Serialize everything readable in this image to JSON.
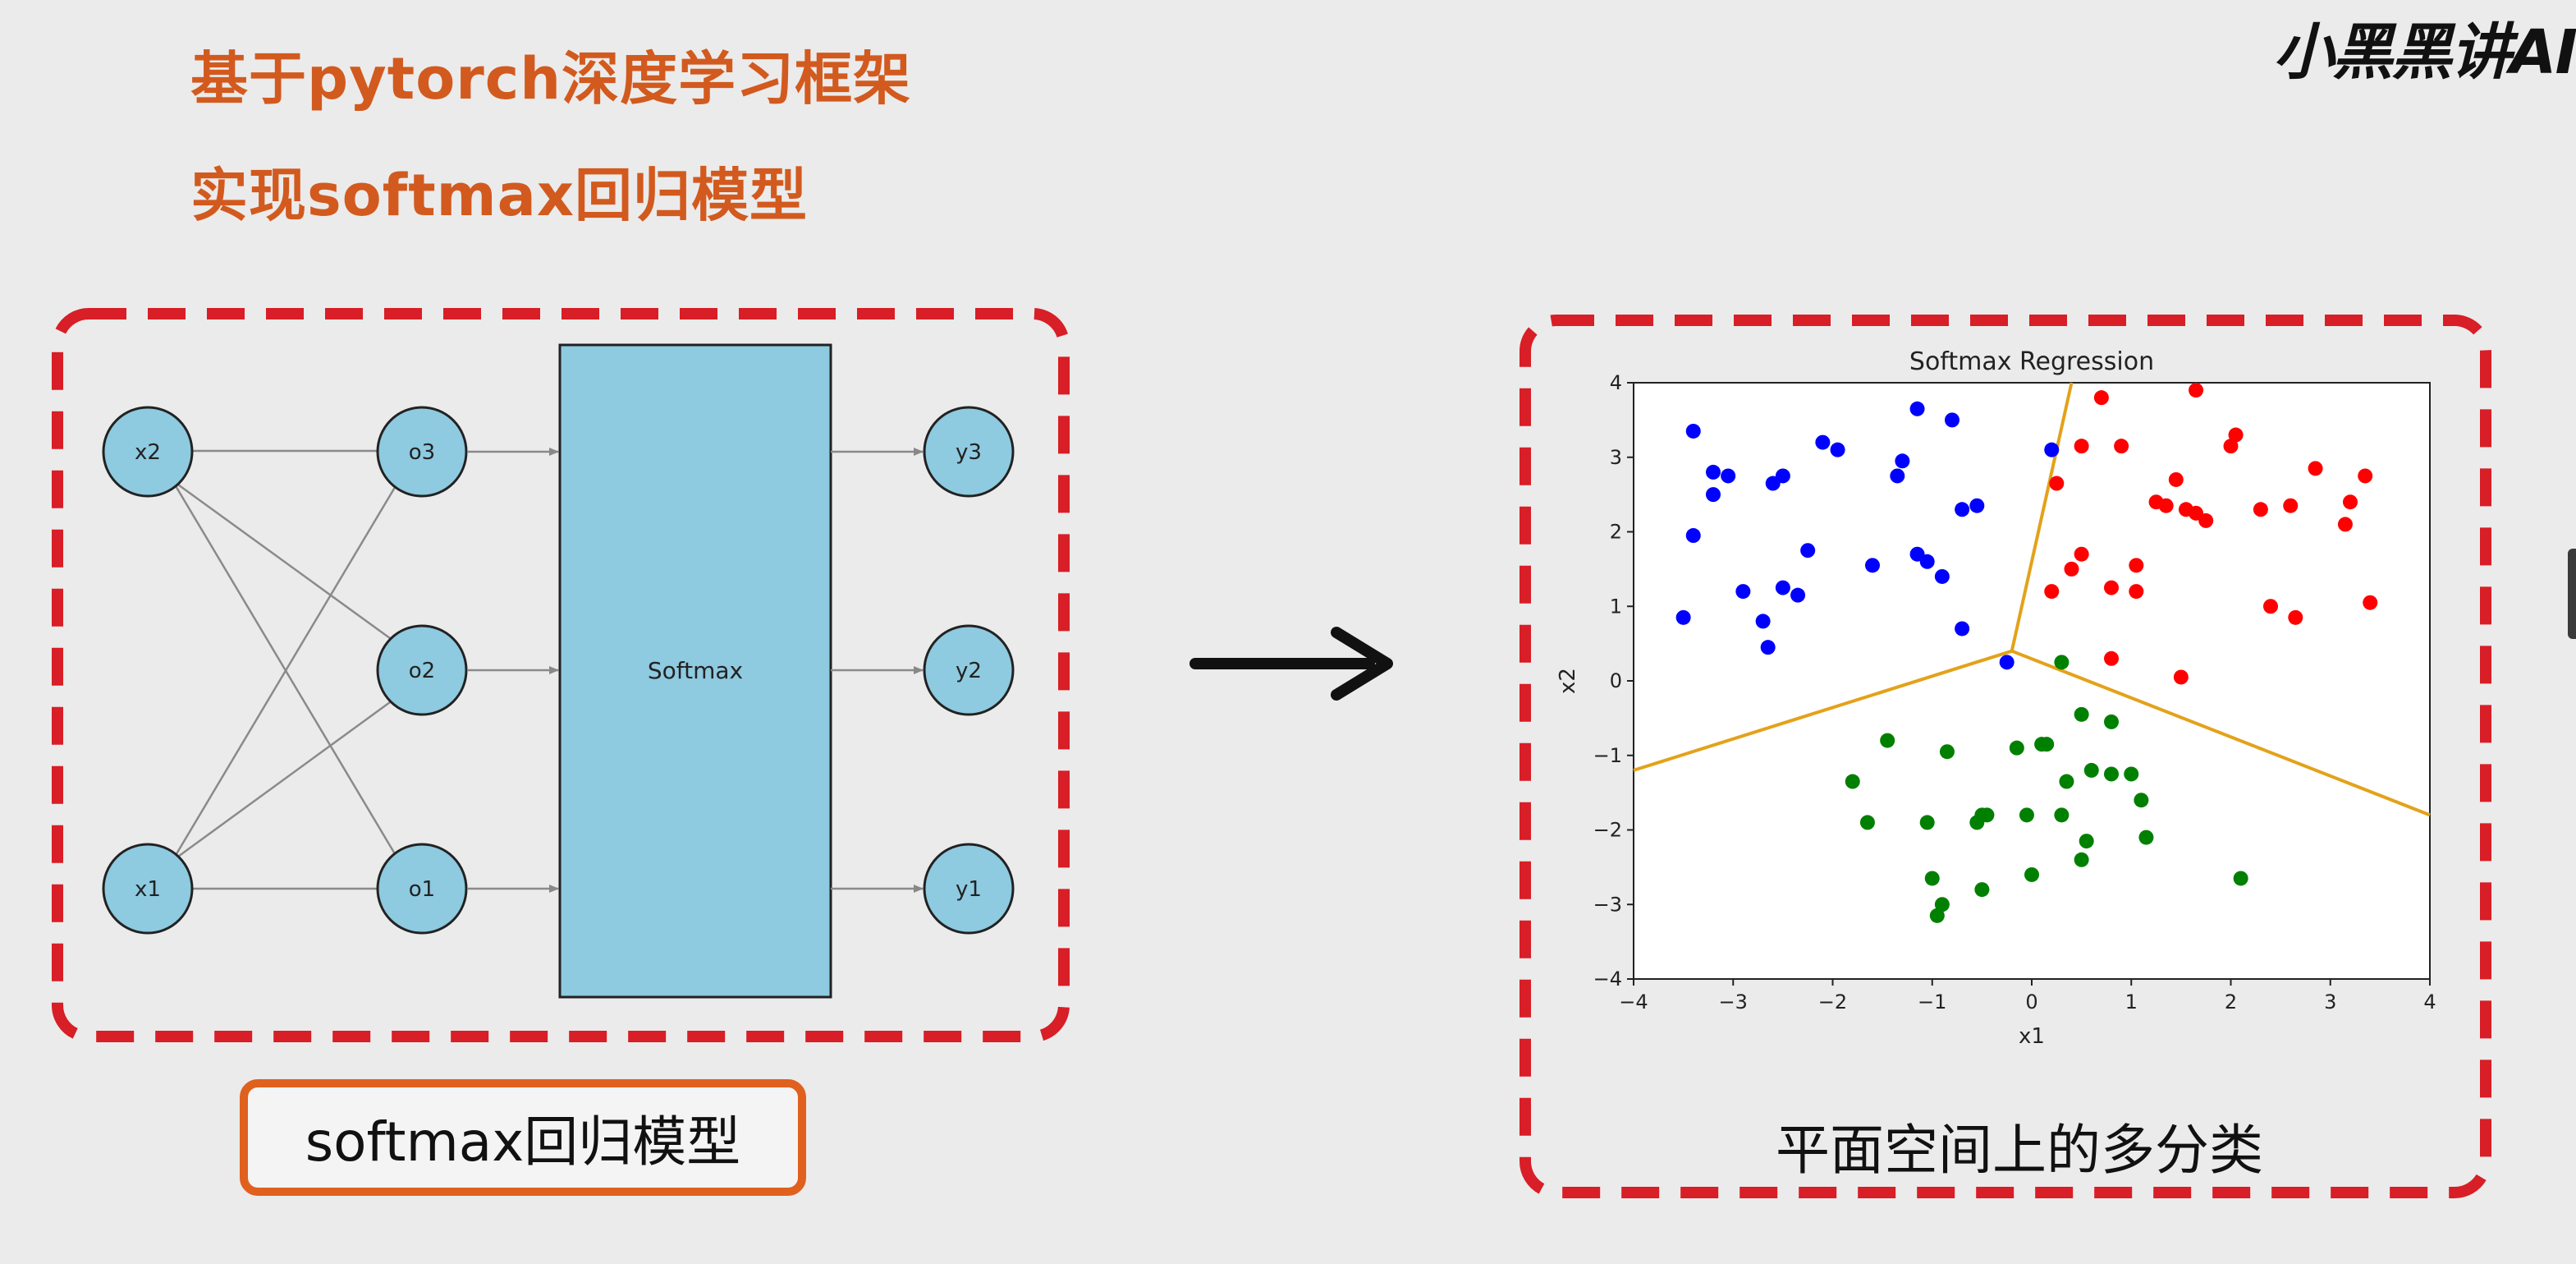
{
  "header": {
    "title_line1": "基于pytorch深度学习框架",
    "title_line2": "实现softmax回归模型",
    "logo": "小黑黑讲AI"
  },
  "left_panel": {
    "inputs": [
      "x2",
      "x1"
    ],
    "outputs_o": [
      "o3",
      "o2",
      "o1"
    ],
    "softmax_label": "Softmax",
    "outputs_y": [
      "y3",
      "y2",
      "y1"
    ],
    "node_color": "#8ecae0",
    "caption": "softmax回归模型"
  },
  "right_panel": {
    "caption": "平面空间上的多分类"
  },
  "colors": {
    "accent_orange": "#e0601e",
    "dashed_red": "#d81e26",
    "boundary": "#e3a21a"
  },
  "chart_data": {
    "type": "scatter",
    "title": "Softmax Regression",
    "xlabel": "x1",
    "ylabel": "x2",
    "xlim": [
      -4,
      4
    ],
    "ylim": [
      -4,
      4
    ],
    "xticks": [
      "−4",
      "−3",
      "−2",
      "−1",
      "0",
      "1",
      "2",
      "3",
      "4"
    ],
    "yticks": [
      "−4",
      "−3",
      "−2",
      "−1",
      "0",
      "1",
      "2",
      "3",
      "4"
    ],
    "grid": false,
    "series": [
      {
        "color": "#0000ff",
        "points": [
          [
            -3.5,
            0.85
          ],
          [
            -3.4,
            3.35
          ],
          [
            -3.4,
            1.95
          ],
          [
            -3.2,
            2.8
          ],
          [
            -3.2,
            2.5
          ],
          [
            -3.05,
            2.75
          ],
          [
            -2.9,
            1.2
          ],
          [
            -2.7,
            0.8
          ],
          [
            -2.65,
            0.45
          ],
          [
            -2.6,
            2.65
          ],
          [
            -2.5,
            2.75
          ],
          [
            -2.5,
            1.25
          ],
          [
            -2.35,
            1.15
          ],
          [
            -2.25,
            1.75
          ],
          [
            -2.1,
            3.2
          ],
          [
            -1.95,
            3.1
          ],
          [
            -1.6,
            1.55
          ],
          [
            -1.35,
            2.75
          ],
          [
            -1.3,
            2.95
          ],
          [
            -1.15,
            3.65
          ],
          [
            -1.15,
            1.7
          ],
          [
            -1.05,
            1.6
          ],
          [
            -0.9,
            1.4
          ],
          [
            -0.8,
            3.5
          ],
          [
            -0.7,
            0.7
          ],
          [
            -0.7,
            2.3
          ],
          [
            -0.55,
            2.35
          ],
          [
            -0.25,
            0.25
          ],
          [
            0.2,
            3.1
          ]
        ]
      },
      {
        "color": "#ff0000",
        "points": [
          [
            0.25,
            2.65
          ],
          [
            0.2,
            1.2
          ],
          [
            0.4,
            1.5
          ],
          [
            0.5,
            1.7
          ],
          [
            0.5,
            3.15
          ],
          [
            0.7,
            3.8
          ],
          [
            0.8,
            1.25
          ],
          [
            0.8,
            0.3
          ],
          [
            0.9,
            3.15
          ],
          [
            1.05,
            1.55
          ],
          [
            1.05,
            1.2
          ],
          [
            1.25,
            2.4
          ],
          [
            1.35,
            2.35
          ],
          [
            1.45,
            2.7
          ],
          [
            1.5,
            0.05
          ],
          [
            1.55,
            2.3
          ],
          [
            1.65,
            2.25
          ],
          [
            1.65,
            3.9
          ],
          [
            1.75,
            2.15
          ],
          [
            2.0,
            3.15
          ],
          [
            2.05,
            3.3
          ],
          [
            2.3,
            2.3
          ],
          [
            2.4,
            1.0
          ],
          [
            2.6,
            2.35
          ],
          [
            2.65,
            0.85
          ],
          [
            2.85,
            2.85
          ],
          [
            3.15,
            2.1
          ],
          [
            3.2,
            2.4
          ],
          [
            3.35,
            2.75
          ],
          [
            3.4,
            1.05
          ]
        ]
      },
      {
        "color": "#008000",
        "points": [
          [
            -1.8,
            -1.35
          ],
          [
            -1.65,
            -1.9
          ],
          [
            -1.45,
            -0.8
          ],
          [
            -1.05,
            -1.9
          ],
          [
            -1.0,
            -2.65
          ],
          [
            -0.95,
            -3.15
          ],
          [
            -0.9,
            -3.0
          ],
          [
            -0.85,
            -0.95
          ],
          [
            -0.55,
            -1.9
          ],
          [
            -0.5,
            -1.8
          ],
          [
            -0.5,
            -2.8
          ],
          [
            -0.45,
            -1.8
          ],
          [
            -0.15,
            -0.9
          ],
          [
            -0.05,
            -1.8
          ],
          [
            0.0,
            -2.6
          ],
          [
            0.1,
            -0.85
          ],
          [
            0.15,
            -0.85
          ],
          [
            0.3,
            0.25
          ],
          [
            0.3,
            -1.8
          ],
          [
            0.35,
            -1.35
          ],
          [
            0.5,
            -2.4
          ],
          [
            0.5,
            -0.45
          ],
          [
            0.55,
            -2.15
          ],
          [
            0.6,
            -1.2
          ],
          [
            0.8,
            -1.25
          ],
          [
            0.8,
            -0.55
          ],
          [
            1.0,
            -1.25
          ],
          [
            1.1,
            -1.6
          ],
          [
            1.15,
            -2.1
          ],
          [
            2.1,
            -2.65
          ]
        ]
      }
    ],
    "decision_boundaries": [
      [
        [
          -0.2,
          0.4
        ],
        [
          0.4,
          4.0
        ]
      ],
      [
        [
          -0.2,
          0.4
        ],
        [
          -4.0,
          -1.2
        ]
      ],
      [
        [
          -0.2,
          0.4
        ],
        [
          4.0,
          -1.8
        ]
      ]
    ]
  }
}
